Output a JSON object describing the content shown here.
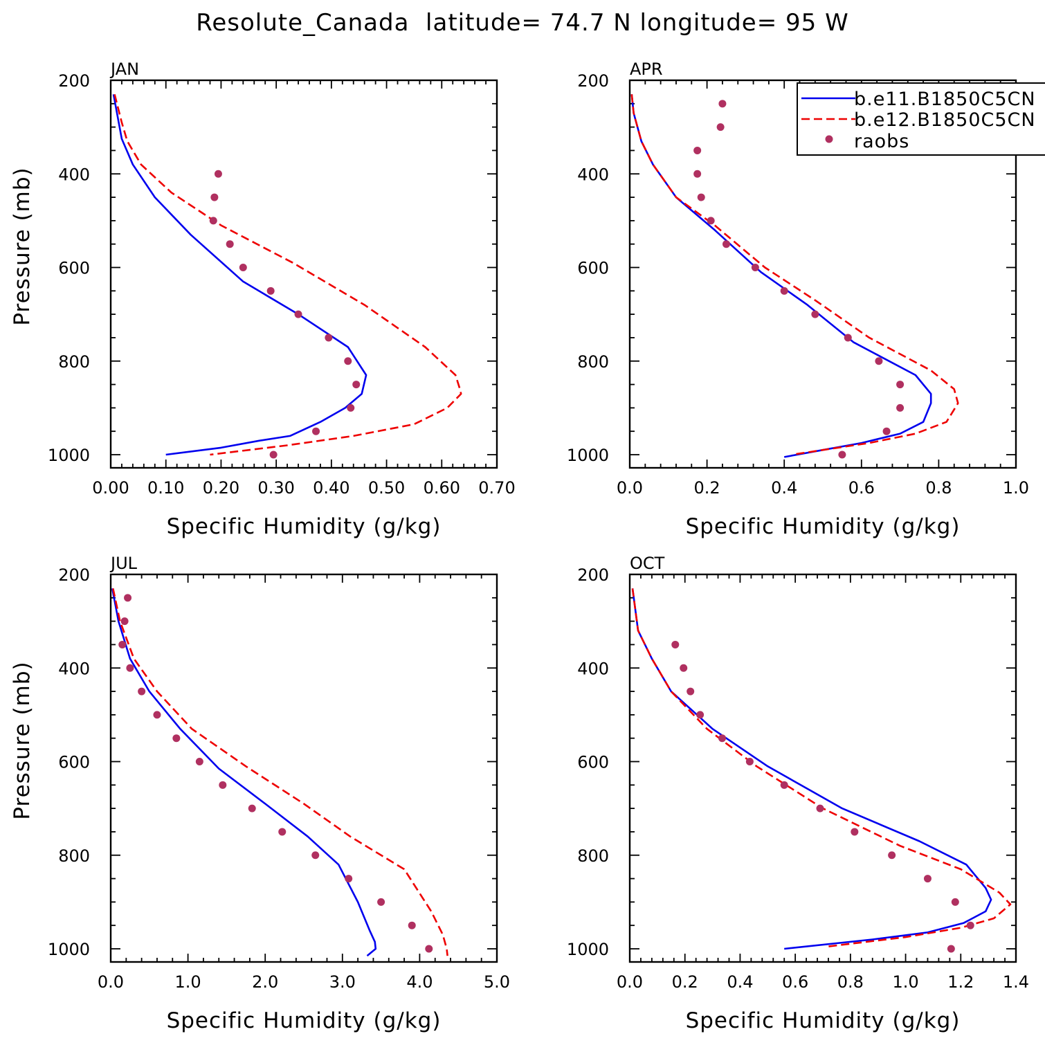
{
  "title": "Resolute_Canada  latitude= 74.7 N longitude= 95 W",
  "colors": {
    "model1": "#0000ee",
    "model2": "#ee0000",
    "obs": "#b03060"
  },
  "legend": {
    "placement": "top-right of APR panel",
    "entries": [
      "b.e11.B1850C5CN",
      "b.e12.B1850C5CN",
      "raobs"
    ]
  },
  "chart_data": [
    {
      "type": "line",
      "panel": "JAN",
      "xlabel": "Specific Humidity (g/kg)",
      "ylabel": "Pressure (mb)",
      "xlim": [
        0,
        0.7
      ],
      "ylim": [
        200,
        1000
      ],
      "y_inverted": true,
      "xticks": [
        "0.00",
        "0.10",
        "0.20",
        "0.30",
        "0.40",
        "0.50",
        "0.60",
        "0.70"
      ],
      "yticks": [
        "200",
        "400",
        "600",
        "800",
        "1000"
      ],
      "series": [
        {
          "name": "b.e11.B1850C5CN",
          "style": "solid",
          "points": [
            [
              0.005,
              230
            ],
            [
              0.02,
              325
            ],
            [
              0.04,
              380
            ],
            [
              0.08,
              450
            ],
            [
              0.145,
              530
            ],
            [
              0.24,
              630
            ],
            [
              0.34,
              700
            ],
            [
              0.43,
              770
            ],
            [
              0.463,
              830
            ],
            [
              0.455,
              870
            ],
            [
              0.425,
              900
            ],
            [
              0.38,
              930
            ],
            [
              0.325,
              960
            ],
            [
              0.27,
              970
            ],
            [
              0.2,
              985
            ],
            [
              0.1,
              1000
            ]
          ]
        },
        {
          "name": "b.e12.B1850C5CN",
          "style": "dashed",
          "points": [
            [
              0.007,
              230
            ],
            [
              0.02,
              290
            ],
            [
              0.03,
              330
            ],
            [
              0.055,
              380
            ],
            [
              0.11,
              440
            ],
            [
              0.2,
              510
            ],
            [
              0.33,
              590
            ],
            [
              0.46,
              680
            ],
            [
              0.57,
              770
            ],
            [
              0.625,
              830
            ],
            [
              0.633,
              860
            ],
            [
              0.635,
              870
            ],
            [
              0.61,
              900
            ],
            [
              0.55,
              935
            ],
            [
              0.44,
              960
            ],
            [
              0.32,
              980
            ],
            [
              0.18,
              1000
            ]
          ]
        },
        {
          "name": "raobs",
          "style": "dots",
          "points": [
            [
              0.195,
              400
            ],
            [
              0.188,
              450
            ],
            [
              0.186,
              500
            ],
            [
              0.216,
              550
            ],
            [
              0.24,
              600
            ],
            [
              0.29,
              650
            ],
            [
              0.34,
              700
            ],
            [
              0.395,
              750
            ],
            [
              0.43,
              800
            ],
            [
              0.445,
              850
            ],
            [
              0.435,
              900
            ],
            [
              0.372,
              950
            ],
            [
              0.295,
              1000
            ]
          ]
        }
      ]
    },
    {
      "type": "line",
      "panel": "APR",
      "xlabel": "Specific Humidity (g/kg)",
      "ylabel": "",
      "xlim": [
        0,
        1.0
      ],
      "ylim": [
        200,
        1000
      ],
      "y_inverted": true,
      "xticks": [
        "0.0",
        "0.2",
        "0.4",
        "0.6",
        "0.8",
        "1.0"
      ],
      "yticks": [
        "200",
        "400",
        "600",
        "800",
        "1000"
      ],
      "series": [
        {
          "name": "b.e11.B1850C5CN",
          "style": "solid",
          "points": [
            [
              0.005,
              230
            ],
            [
              0.01,
              270
            ],
            [
              0.03,
              330
            ],
            [
              0.06,
              380
            ],
            [
              0.12,
              450
            ],
            [
              0.22,
              520
            ],
            [
              0.34,
              610
            ],
            [
              0.46,
              680
            ],
            [
              0.58,
              760
            ],
            [
              0.74,
              830
            ],
            [
              0.78,
              870
            ],
            [
              0.78,
              890
            ],
            [
              0.76,
              930
            ],
            [
              0.7,
              955
            ],
            [
              0.6,
              975
            ],
            [
              0.5,
              990
            ],
            [
              0.4,
              1005
            ]
          ]
        },
        {
          "name": "b.e12.B1850C5CN",
          "style": "dashed",
          "points": [
            [
              0.005,
              230
            ],
            [
              0.01,
              270
            ],
            [
              0.03,
              330
            ],
            [
              0.06,
              380
            ],
            [
              0.12,
              450
            ],
            [
              0.22,
              510
            ],
            [
              0.35,
              600
            ],
            [
              0.48,
              670
            ],
            [
              0.62,
              750
            ],
            [
              0.78,
              820
            ],
            [
              0.84,
              860
            ],
            [
              0.85,
              890
            ],
            [
              0.82,
              930
            ],
            [
              0.74,
              955
            ],
            [
              0.62,
              975
            ],
            [
              0.5,
              990
            ],
            [
              0.42,
              1000
            ]
          ]
        },
        {
          "name": "raobs",
          "style": "dots",
          "points": [
            [
              0.24,
              250
            ],
            [
              0.235,
              300
            ],
            [
              0.175,
              350
            ],
            [
              0.175,
              400
            ],
            [
              0.185,
              450
            ],
            [
              0.21,
              500
            ],
            [
              0.25,
              550
            ],
            [
              0.325,
              600
            ],
            [
              0.4,
              650
            ],
            [
              0.48,
              700
            ],
            [
              0.565,
              750
            ],
            [
              0.645,
              800
            ],
            [
              0.7,
              850
            ],
            [
              0.7,
              900
            ],
            [
              0.665,
              950
            ],
            [
              0.55,
              1000
            ]
          ]
        }
      ]
    },
    {
      "type": "line",
      "panel": "JUL",
      "xlabel": "Specific Humidity (g/kg)",
      "ylabel": "Pressure (mb)",
      "xlim": [
        0,
        5.0
      ],
      "ylim": [
        200,
        1000
      ],
      "y_inverted": true,
      "xticks": [
        "0.0",
        "1.0",
        "2.0",
        "3.0",
        "4.0",
        "5.0"
      ],
      "yticks": [
        "200",
        "400",
        "600",
        "800",
        "1000"
      ],
      "series": [
        {
          "name": "b.e11.B1850C5CN",
          "style": "solid",
          "points": [
            [
              0.02,
              230
            ],
            [
              0.1,
              300
            ],
            [
              0.25,
              380
            ],
            [
              0.5,
              450
            ],
            [
              0.9,
              530
            ],
            [
              1.4,
              615
            ],
            [
              2.0,
              690
            ],
            [
              2.55,
              760
            ],
            [
              2.95,
              820
            ],
            [
              3.2,
              900
            ],
            [
              3.35,
              960
            ],
            [
              3.42,
              985
            ],
            [
              3.43,
              1000
            ],
            [
              3.32,
              1015
            ]
          ]
        },
        {
          "name": "b.e12.B1850C5CN",
          "style": "dashed",
          "points": [
            [
              0.03,
              230
            ],
            [
              0.12,
              300
            ],
            [
              0.3,
              380
            ],
            [
              0.6,
              450
            ],
            [
              1.05,
              530
            ],
            [
              1.75,
              610
            ],
            [
              2.5,
              690
            ],
            [
              3.1,
              760
            ],
            [
              3.8,
              830
            ],
            [
              4.15,
              920
            ],
            [
              4.3,
              970
            ],
            [
              4.35,
              1000
            ],
            [
              4.36,
              1015
            ]
          ]
        },
        {
          "name": "raobs",
          "style": "dots",
          "points": [
            [
              0.22,
              250
            ],
            [
              0.18,
              300
            ],
            [
              0.15,
              350
            ],
            [
              0.25,
              400
            ],
            [
              0.4,
              450
            ],
            [
              0.6,
              500
            ],
            [
              0.85,
              550
            ],
            [
              1.15,
              600
            ],
            [
              1.45,
              650
            ],
            [
              1.83,
              700
            ],
            [
              2.22,
              750
            ],
            [
              2.65,
              800
            ],
            [
              3.08,
              850
            ],
            [
              3.5,
              900
            ],
            [
              3.9,
              950
            ],
            [
              4.12,
              1000
            ]
          ]
        }
      ]
    },
    {
      "type": "line",
      "panel": "OCT",
      "xlabel": "Specific Humidity (g/kg)",
      "ylabel": "",
      "xlim": [
        0,
        1.4
      ],
      "ylim": [
        200,
        1000
      ],
      "y_inverted": true,
      "xticks": [
        "0.0",
        "0.2",
        "0.4",
        "0.6",
        "0.8",
        "1.0",
        "1.2",
        "1.4"
      ],
      "yticks": [
        "200",
        "400",
        "600",
        "800",
        "1000"
      ],
      "series": [
        {
          "name": "b.e11.B1850C5CN",
          "style": "solid",
          "points": [
            [
              0.01,
              230
            ],
            [
              0.03,
              320
            ],
            [
              0.08,
              380
            ],
            [
              0.15,
              450
            ],
            [
              0.3,
              530
            ],
            [
              0.5,
              610
            ],
            [
              0.77,
              700
            ],
            [
              1.05,
              770
            ],
            [
              1.22,
              820
            ],
            [
              1.29,
              870
            ],
            [
              1.31,
              895
            ],
            [
              1.29,
              920
            ],
            [
              1.21,
              945
            ],
            [
              1.08,
              965
            ],
            [
              0.88,
              980
            ],
            [
              0.56,
              1000
            ]
          ]
        },
        {
          "name": "b.e12.B1850C5CN",
          "style": "dashed",
          "points": [
            [
              0.01,
              230
            ],
            [
              0.03,
              320
            ],
            [
              0.08,
              380
            ],
            [
              0.15,
              450
            ],
            [
              0.28,
              530
            ],
            [
              0.46,
              610
            ],
            [
              0.7,
              700
            ],
            [
              0.98,
              780
            ],
            [
              1.2,
              830
            ],
            [
              1.34,
              880
            ],
            [
              1.38,
              905
            ],
            [
              1.32,
              935
            ],
            [
              1.2,
              955
            ],
            [
              1.0,
              975
            ],
            [
              0.72,
              995
            ]
          ]
        },
        {
          "name": "raobs",
          "style": "dots",
          "points": [
            [
              0.165,
              350
            ],
            [
              0.195,
              400
            ],
            [
              0.22,
              450
            ],
            [
              0.255,
              500
            ],
            [
              0.335,
              550
            ],
            [
              0.435,
              600
            ],
            [
              0.56,
              650
            ],
            [
              0.69,
              700
            ],
            [
              0.815,
              750
            ],
            [
              0.95,
              800
            ],
            [
              1.08,
              850
            ],
            [
              1.18,
              900
            ],
            [
              1.235,
              950
            ],
            [
              1.165,
              1000
            ]
          ]
        }
      ]
    }
  ]
}
